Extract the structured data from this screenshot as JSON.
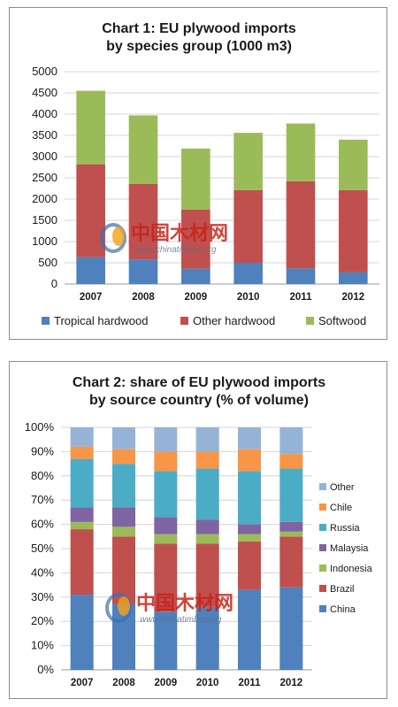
{
  "chart_data": [
    {
      "type": "bar",
      "stacked": true,
      "title_lines": [
        "Chart 1: EU plywood imports",
        "by species group (1000 m3)"
      ],
      "categories": [
        "2007",
        "2008",
        "2009",
        "2010",
        "2011",
        "2012"
      ],
      "series": [
        {
          "name": "Tropical hardwood",
          "color": "#4f81bd",
          "values": [
            630,
            580,
            360,
            500,
            370,
            280
          ]
        },
        {
          "name": "Other hardwood",
          "color": "#c0504d",
          "values": [
            2190,
            1780,
            1390,
            1710,
            2050,
            1930
          ]
        },
        {
          "name": "Softwood",
          "color": "#9bbb59",
          "values": [
            1730,
            1610,
            1440,
            1350,
            1360,
            1190
          ]
        }
      ],
      "yticks": [
        "0",
        "500",
        "1000",
        "1500",
        "2000",
        "2500",
        "3000",
        "3500",
        "4000",
        "4500",
        "5000"
      ],
      "ylim": [
        0,
        5000
      ],
      "grid": true,
      "legend": "bottom"
    },
    {
      "type": "bar",
      "stacked": true,
      "title_lines": [
        "Chart 2: share of EU plywood imports",
        "by source country (% of volume)"
      ],
      "categories": [
        "2007",
        "2008",
        "2009",
        "2010",
        "2011",
        "2012"
      ],
      "series": [
        {
          "name": "China",
          "color": "#4f81bd",
          "values": [
            31,
            27,
            24,
            26,
            33,
            34
          ]
        },
        {
          "name": "Brazil",
          "color": "#c0504d",
          "values": [
            27,
            28,
            28,
            26,
            20,
            21
          ]
        },
        {
          "name": "Indonesia",
          "color": "#9bbb59",
          "values": [
            3,
            4,
            4,
            4,
            3,
            2
          ]
        },
        {
          "name": "Malaysia",
          "color": "#8064a2",
          "values": [
            6,
            8,
            7,
            6,
            4,
            4
          ]
        },
        {
          "name": "Russia",
          "color": "#4bacc6",
          "values": [
            20,
            18,
            19,
            21,
            22,
            22
          ]
        },
        {
          "name": "Chile",
          "color": "#f79646",
          "values": [
            5,
            6,
            8,
            7,
            9,
            6
          ]
        },
        {
          "name": "Other",
          "color": "#95b3d7",
          "values": [
            8,
            9,
            10,
            10,
            9,
            11
          ]
        }
      ],
      "yticks": [
        "0%",
        "10%",
        "20%",
        "30%",
        "40%",
        "50%",
        "60%",
        "70%",
        "80%",
        "90%",
        "100%"
      ],
      "ylim": [
        0,
        100
      ],
      "grid": true,
      "legend": "right"
    }
  ],
  "watermark": {
    "text": "中国木材网",
    "url": "www.chinatimber.org"
  }
}
